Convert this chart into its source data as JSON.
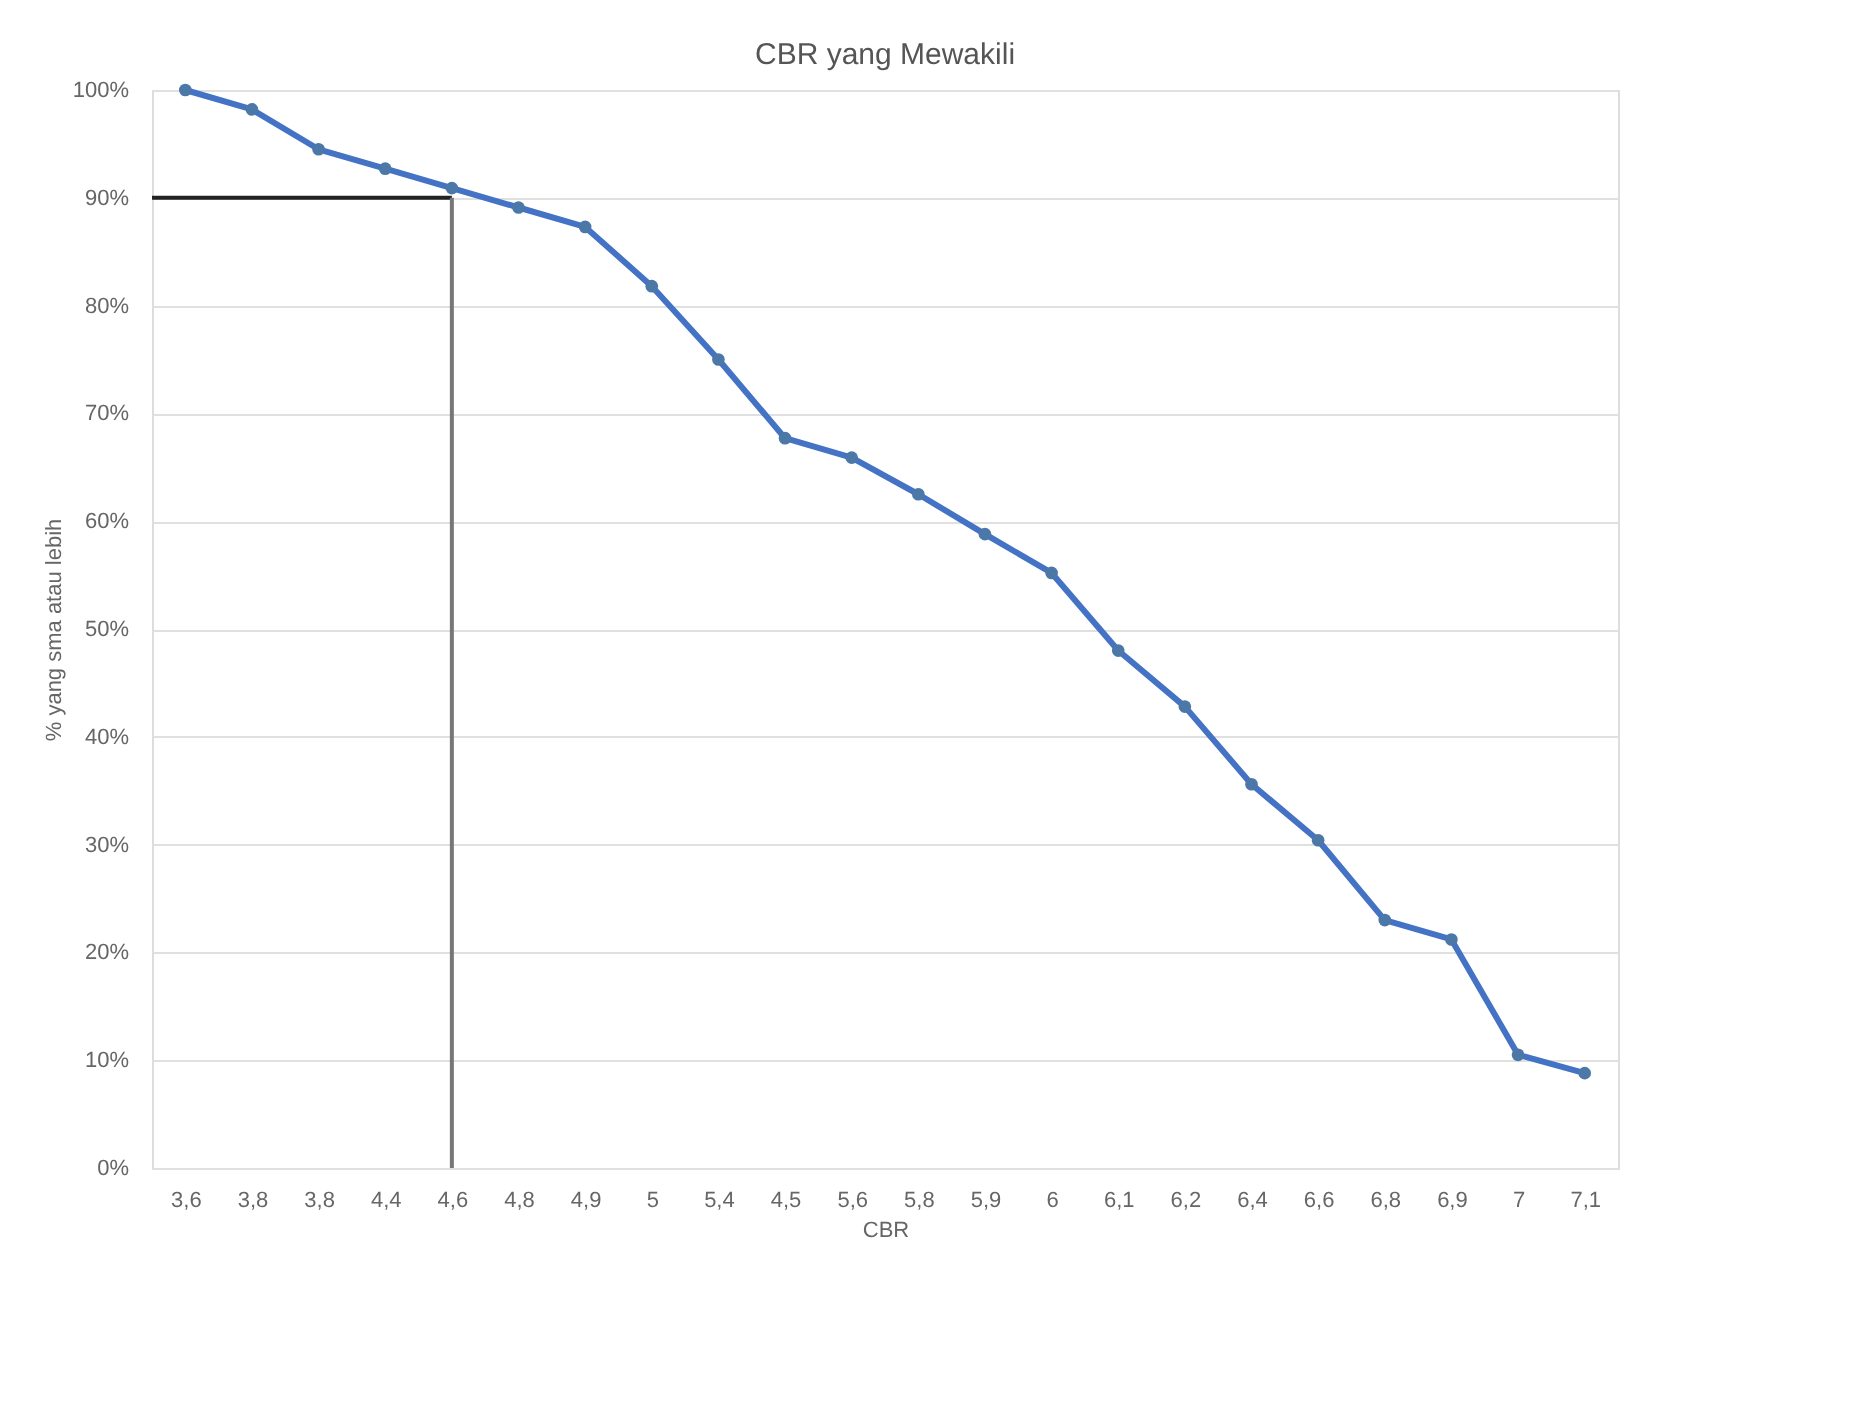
{
  "chart_data": {
    "type": "line",
    "title": "CBR yang Mewakili",
    "xlabel": "CBR",
    "ylabel": "% yang sma atau lebih",
    "categories": [
      "3,6",
      "3,8",
      "3,8",
      "4,4",
      "4,6",
      "4,8",
      "4,9",
      "5",
      "5,4",
      "4,5",
      "5,6",
      "5,8",
      "5,9",
      "6",
      "6,1",
      "6,2",
      "6,4",
      "6,6",
      "6,8",
      "6,9",
      "7",
      "7,1"
    ],
    "series": [
      {
        "color": "#4472c4",
        "values": [
          100,
          98.2,
          94.5,
          92.7,
          90.9,
          89.1,
          87.3,
          81.8,
          75,
          67.7,
          65.9,
          62.5,
          58.8,
          55.2,
          48,
          42.8,
          35.6,
          30.4,
          23,
          21.2,
          10.5,
          8.8
        ]
      }
    ],
    "ylim": [
      0,
      100
    ],
    "yticks": [
      {
        "value": 0,
        "label": "0%"
      },
      {
        "value": 10,
        "label": "10%"
      },
      {
        "value": 20,
        "label": "20%"
      },
      {
        "value": 30,
        "label": "30%"
      },
      {
        "value": 40,
        "label": "40%"
      },
      {
        "value": 50,
        "label": "50%"
      },
      {
        "value": 60,
        "label": "60%"
      },
      {
        "value": 70,
        "label": "70%"
      },
      {
        "value": 80,
        "label": "80%"
      },
      {
        "value": 90,
        "label": "90%"
      },
      {
        "value": 100,
        "label": "100%"
      }
    ],
    "ref_lines": [
      {
        "axis": "y",
        "value": 90,
        "color": "#222222"
      },
      {
        "axis": "x",
        "value": "4,6",
        "color": "#777777"
      }
    ],
    "grid": "y",
    "marker": "circle",
    "line_style": "solid"
  }
}
